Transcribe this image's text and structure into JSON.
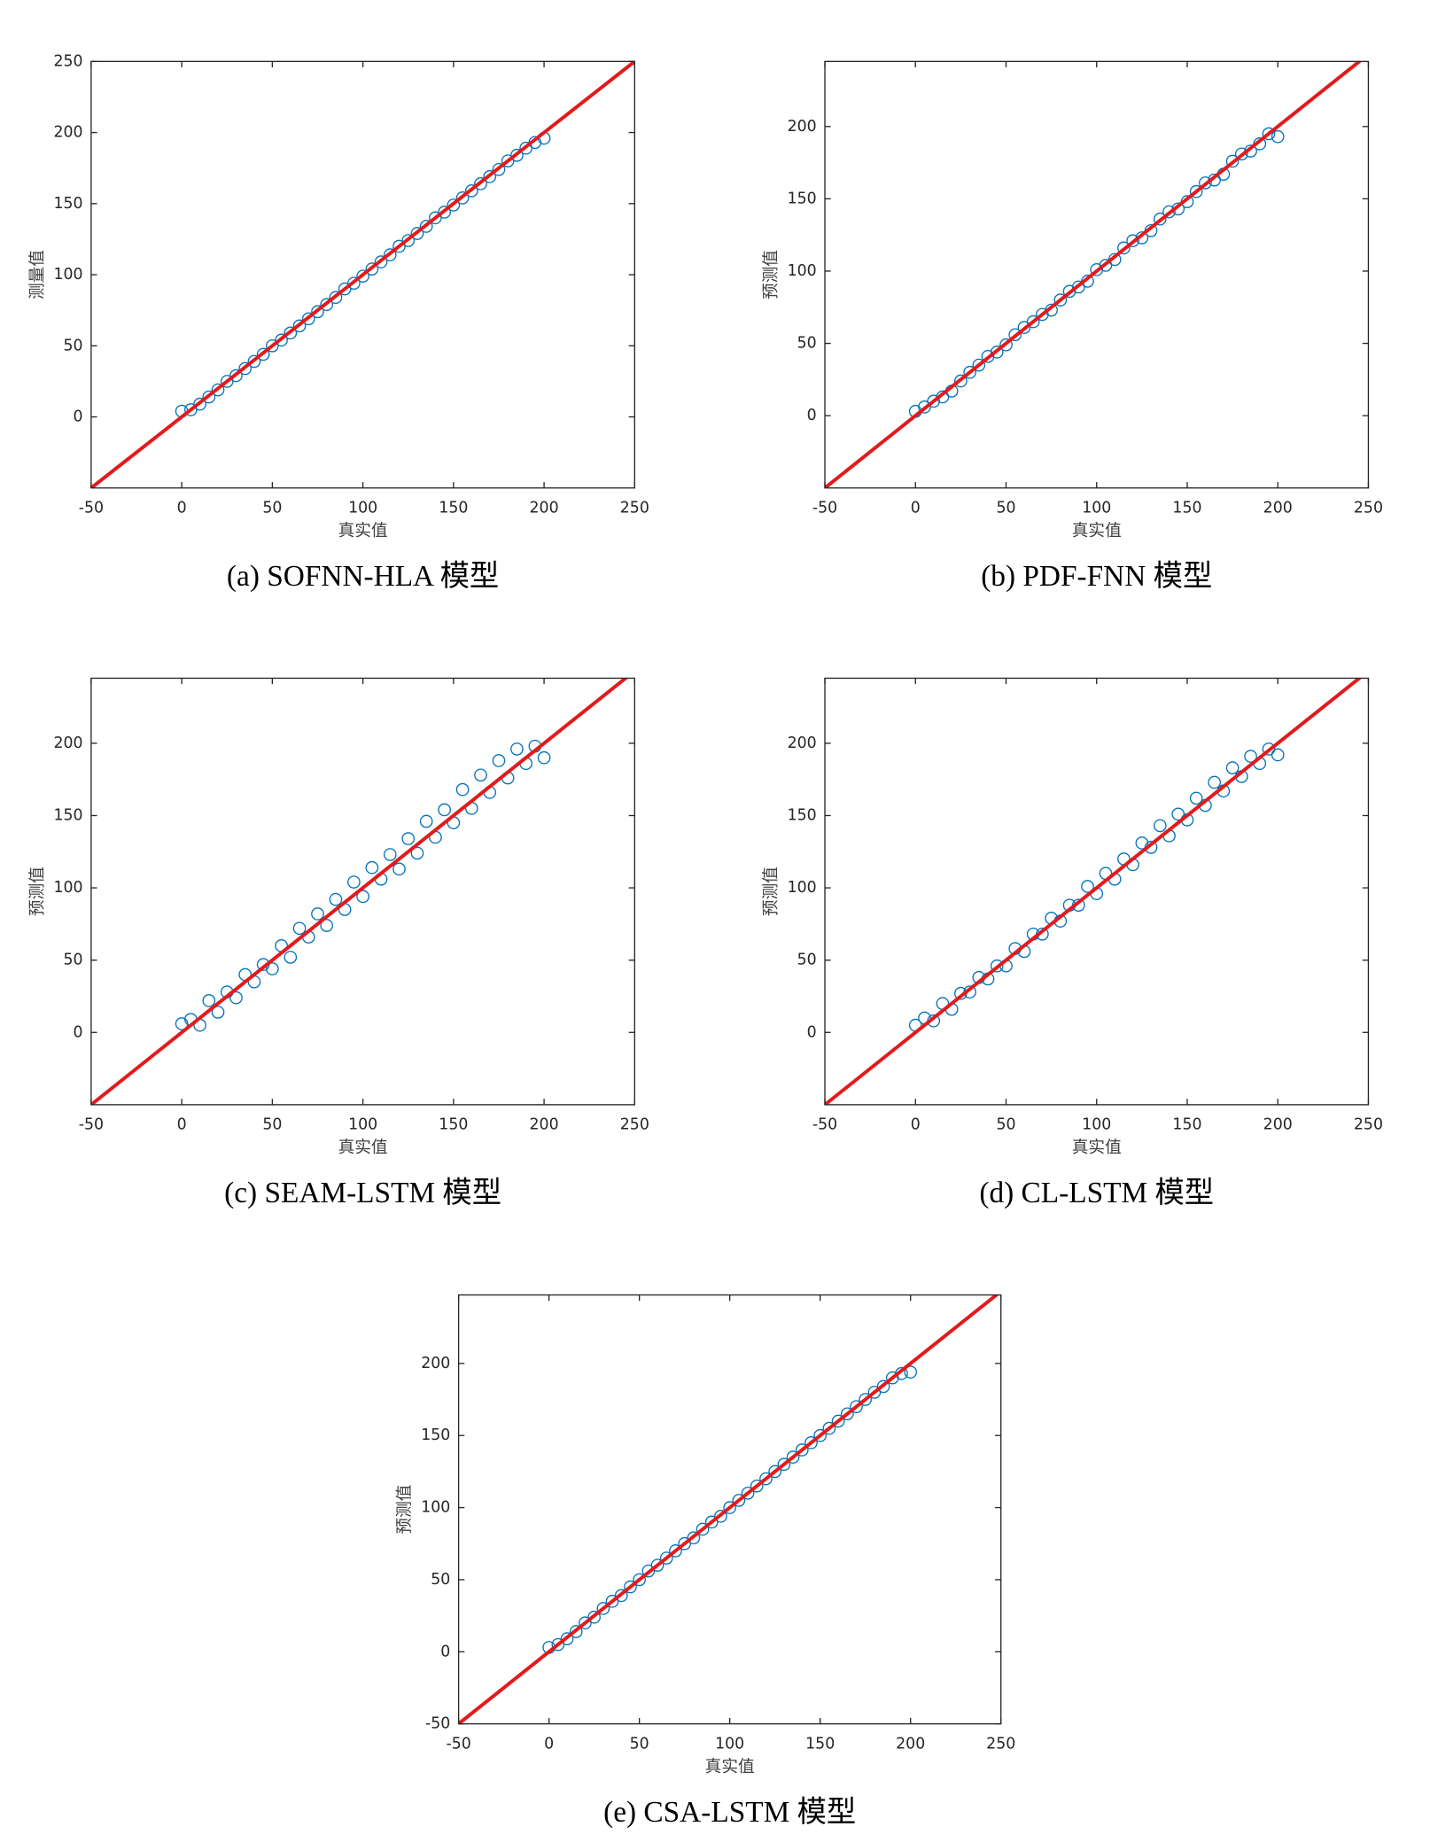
{
  "chart_data": [
    {
      "type": "scatter",
      "caption": "(a) SOFNN-HLA 模型",
      "xlabel": "真实值",
      "ylabel": "测量值",
      "xlim": [
        -50,
        250
      ],
      "ylim": [
        -50,
        250
      ],
      "xticks": [
        -50,
        0,
        50,
        100,
        150,
        200,
        250
      ],
      "yticks": [
        0,
        50,
        100,
        150,
        200,
        250
      ],
      "points": {
        "color": "#0072bd",
        "x": [
          0,
          5,
          10,
          15,
          20,
          25,
          30,
          35,
          40,
          45,
          50,
          55,
          60,
          65,
          70,
          75,
          80,
          85,
          90,
          95,
          100,
          105,
          110,
          115,
          120,
          125,
          130,
          135,
          140,
          145,
          150,
          155,
          160,
          165,
          170,
          175,
          180,
          185,
          190,
          195,
          200
        ],
        "y": [
          4,
          5,
          9,
          14,
          19,
          25,
          29,
          34,
          39,
          44,
          50,
          54,
          59,
          64,
          69,
          74,
          79,
          84,
          90,
          94,
          99,
          104,
          109,
          114,
          120,
          124,
          129,
          134,
          140,
          144,
          149,
          154,
          159,
          164,
          169,
          174,
          180,
          184,
          189,
          193,
          196
        ]
      },
      "reference_line": {
        "x": [
          -50,
          250
        ],
        "y": [
          -50,
          250
        ],
        "color": "#e31a1c"
      }
    },
    {
      "type": "scatter",
      "caption": "(b) PDF-FNN 模型",
      "xlabel": "真实值",
      "ylabel": "预测值",
      "xlim": [
        -50,
        250
      ],
      "ylim": [
        -50,
        245
      ],
      "xticks": [
        -50,
        0,
        50,
        100,
        150,
        200,
        250
      ],
      "yticks": [
        0,
        50,
        100,
        150,
        200
      ],
      "points": {
        "color": "#0072bd",
        "x": [
          0,
          5,
          10,
          15,
          20,
          25,
          30,
          35,
          40,
          45,
          50,
          55,
          60,
          65,
          70,
          75,
          80,
          85,
          90,
          95,
          100,
          105,
          110,
          115,
          120,
          125,
          130,
          135,
          140,
          145,
          150,
          155,
          160,
          165,
          170,
          175,
          180,
          185,
          190,
          195,
          200
        ],
        "y": [
          3,
          6,
          10,
          13,
          17,
          24,
          30,
          35,
          41,
          44,
          49,
          56,
          61,
          65,
          70,
          73,
          80,
          86,
          89,
          93,
          101,
          104,
          108,
          116,
          121,
          123,
          128,
          136,
          141,
          143,
          148,
          155,
          161,
          163,
          167,
          176,
          181,
          183,
          188,
          195,
          193
        ]
      },
      "reference_line": {
        "x": [
          -50,
          250
        ],
        "y": [
          -50,
          250
        ],
        "color": "#e31a1c"
      }
    },
    {
      "type": "scatter",
      "caption": "(c) SEAM-LSTM 模型",
      "xlabel": "真实值",
      "ylabel": "预测值",
      "xlim": [
        -50,
        250
      ],
      "ylim": [
        -50,
        245
      ],
      "xticks": [
        -50,
        0,
        50,
        100,
        150,
        200,
        250
      ],
      "yticks": [
        0,
        50,
        100,
        150,
        200
      ],
      "points": {
        "color": "#0072bd",
        "x": [
          0,
          5,
          10,
          15,
          20,
          25,
          30,
          35,
          40,
          45,
          50,
          55,
          60,
          65,
          70,
          75,
          80,
          85,
          90,
          95,
          100,
          105,
          110,
          115,
          120,
          125,
          130,
          135,
          140,
          145,
          150,
          155,
          160,
          165,
          170,
          175,
          180,
          185,
          190,
          195,
          200
        ],
        "y": [
          6,
          9,
          5,
          22,
          14,
          28,
          24,
          40,
          35,
          47,
          44,
          60,
          52,
          72,
          66,
          82,
          74,
          92,
          85,
          104,
          94,
          114,
          106,
          123,
          113,
          134,
          124,
          146,
          135,
          154,
          145,
          168,
          155,
          178,
          166,
          188,
          176,
          196,
          186,
          198,
          190
        ]
      },
      "reference_line": {
        "x": [
          -50,
          250
        ],
        "y": [
          -50,
          250
        ],
        "color": "#e31a1c"
      }
    },
    {
      "type": "scatter",
      "caption": "(d) CL-LSTM 模型",
      "xlabel": "真实值",
      "ylabel": "预测值",
      "xlim": [
        -50,
        250
      ],
      "ylim": [
        -50,
        245
      ],
      "xticks": [
        -50,
        0,
        50,
        100,
        150,
        200,
        250
      ],
      "yticks": [
        0,
        50,
        100,
        150,
        200
      ],
      "points": {
        "color": "#0072bd",
        "x": [
          0,
          5,
          10,
          15,
          20,
          25,
          30,
          35,
          40,
          45,
          50,
          55,
          60,
          65,
          70,
          75,
          80,
          85,
          90,
          95,
          100,
          105,
          110,
          115,
          120,
          125,
          130,
          135,
          140,
          145,
          150,
          155,
          160,
          165,
          170,
          175,
          180,
          185,
          190,
          195,
          200
        ],
        "y": [
          5,
          10,
          8,
          20,
          16,
          27,
          28,
          38,
          37,
          46,
          46,
          58,
          56,
          68,
          68,
          79,
          77,
          88,
          88,
          101,
          96,
          110,
          106,
          120,
          116,
          131,
          128,
          143,
          136,
          151,
          147,
          162,
          157,
          173,
          167,
          183,
          177,
          191,
          186,
          196,
          192
        ]
      },
      "reference_line": {
        "x": [
          -50,
          250
        ],
        "y": [
          -50,
          250
        ],
        "color": "#e31a1c"
      }
    },
    {
      "type": "scatter",
      "caption": "(e) CSA-LSTM 模型",
      "xlabel": "真实值",
      "ylabel": "预测值",
      "xlim": [
        -50,
        250
      ],
      "ylim": [
        -50,
        247.5
      ],
      "xticks": [
        -50,
        0,
        50,
        100,
        150,
        200,
        250
      ],
      "yticks": [
        -50,
        0,
        50,
        100,
        150,
        200
      ],
      "points": {
        "color": "#0072bd",
        "x": [
          0,
          5,
          10,
          15,
          20,
          25,
          30,
          35,
          40,
          45,
          50,
          55,
          60,
          65,
          70,
          75,
          80,
          85,
          90,
          95,
          100,
          105,
          110,
          115,
          120,
          125,
          130,
          135,
          140,
          145,
          150,
          155,
          160,
          165,
          170,
          175,
          180,
          185,
          190,
          195,
          200
        ],
        "y": [
          3,
          5,
          9,
          14,
          20,
          24,
          30,
          35,
          39,
          45,
          50,
          56,
          60,
          65,
          70,
          75,
          79,
          85,
          90,
          94,
          100,
          105,
          110,
          115,
          120,
          125,
          130,
          135,
          140,
          145,
          150,
          155,
          160,
          165,
          170,
          175,
          180,
          184,
          190,
          193,
          194
        ]
      },
      "reference_line": {
        "x": [
          -50,
          250
        ],
        "y": [
          -50,
          250
        ],
        "color": "#e31a1c"
      }
    }
  ]
}
